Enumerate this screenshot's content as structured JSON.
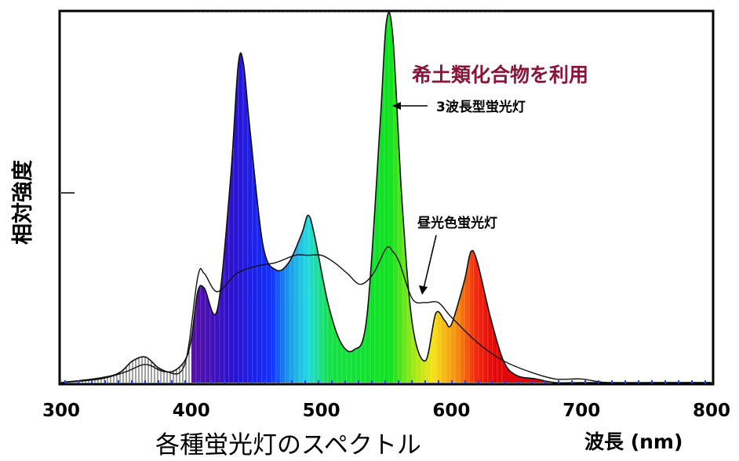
{
  "chart_data": {
    "type": "area",
    "title": "各種蛍光灯のスペクトル",
    "xlabel": "波長 (nm)",
    "ylabel": "相対強度",
    "xlim": [
      300,
      800
    ],
    "ylim": [
      0,
      1
    ],
    "x_ticks": [
      "300",
      "400",
      "500",
      "600",
      "700",
      "800"
    ],
    "grid": false,
    "series": [
      {
        "name": "3波長型蛍光灯",
        "style": "filled-spectrum",
        "x": [
          300,
          340,
          355,
          365,
          375,
          385,
          395,
          400,
          405,
          410,
          420,
          430,
          436,
          440,
          445,
          455,
          465,
          475,
          485,
          490,
          495,
          505,
          515,
          525,
          535,
          545,
          550,
          555,
          562,
          570,
          580,
          588,
          595,
          600,
          610,
          615,
          620,
          630,
          640,
          650,
          665,
          680,
          700,
          750,
          800
        ],
        "values": [
          0.0,
          0.02,
          0.06,
          0.07,
          0.04,
          0.03,
          0.06,
          0.12,
          0.25,
          0.26,
          0.2,
          0.55,
          0.87,
          0.88,
          0.7,
          0.38,
          0.31,
          0.33,
          0.41,
          0.46,
          0.4,
          0.22,
          0.11,
          0.09,
          0.18,
          0.7,
          0.99,
          0.95,
          0.5,
          0.16,
          0.06,
          0.19,
          0.17,
          0.16,
          0.28,
          0.36,
          0.33,
          0.18,
          0.06,
          0.02,
          0.01,
          0.0,
          0.0,
          0.0,
          0.0
        ]
      },
      {
        "name": "昼光色蛍光灯",
        "style": "line",
        "x": [
          300,
          330,
          350,
          365,
          380,
          395,
          405,
          410,
          420,
          435,
          450,
          465,
          480,
          490,
          500,
          510,
          520,
          530,
          540,
          550,
          555,
          560,
          570,
          580,
          590,
          600,
          620,
          640,
          660,
          680,
          700,
          720,
          760,
          800
        ],
        "values": [
          0.0,
          0.01,
          0.03,
          0.05,
          0.03,
          0.05,
          0.29,
          0.3,
          0.25,
          0.3,
          0.32,
          0.33,
          0.35,
          0.35,
          0.35,
          0.33,
          0.3,
          0.27,
          0.3,
          0.37,
          0.36,
          0.33,
          0.23,
          0.22,
          0.22,
          0.18,
          0.11,
          0.06,
          0.03,
          0.01,
          0.01,
          0.0,
          0.0,
          0.0
        ]
      }
    ],
    "annotations": [
      {
        "text": "希土類化合物を利用",
        "color": "#8B1538"
      },
      {
        "text": "3波長型蛍光灯",
        "points_to": "3波長型蛍光灯"
      },
      {
        "text": "昼光色蛍光灯",
        "points_to": "昼光色蛍光灯"
      }
    ]
  }
}
